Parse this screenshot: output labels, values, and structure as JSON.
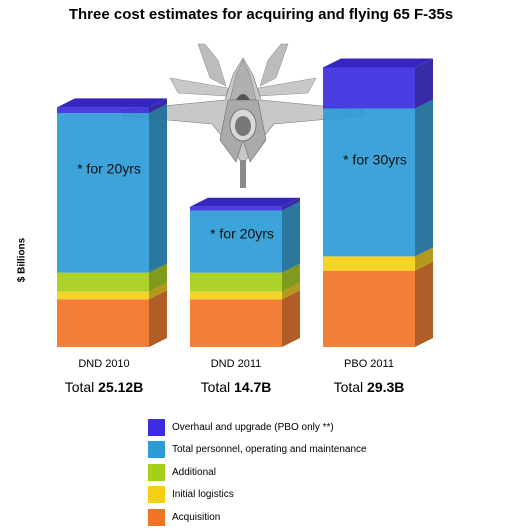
{
  "chart_data": {
    "type": "bar",
    "stacked": true,
    "title": "Three cost estimates for acquiring and flying 65 F-35s",
    "ylabel": "$ Billions",
    "categories": [
      "DND 2010",
      "DND 2011",
      "PBO 2011"
    ],
    "series": [
      {
        "name": "Acquisition",
        "color": "#f07426",
        "values": [
          5.0,
          5.0,
          8.0
        ]
      },
      {
        "name": "Initial logistics",
        "color": "#f5cf16",
        "values": [
          0.8,
          0.8,
          1.5
        ]
      },
      {
        "name": "Additional",
        "color": "#a6cf18",
        "values": [
          2.0,
          2.0,
          0
        ]
      },
      {
        "name": "Total personnel, operating and maintenance",
        "color": "#2e9bd6",
        "values": [
          16.72,
          6.5,
          15.5
        ]
      },
      {
        "name": "Overhaul and upgrade (PBO only **)",
        "color": "#3d2de0",
        "values": [
          0.6,
          0.4,
          4.3
        ]
      }
    ],
    "annotations": [
      "* for 20yrs",
      "* for 20yrs",
      "* for 30yrs"
    ],
    "totals": [
      {
        "label": "Total",
        "value": "25.12B"
      },
      {
        "label": "Total",
        "value": "14.7B"
      },
      {
        "label": "Total",
        "value": "29.3B"
      }
    ],
    "legend_order": [
      4,
      3,
      2,
      1,
      0
    ],
    "legend_position": "bottom",
    "ylim": [
      0,
      30.5
    ],
    "grid": false
  },
  "legend_labels": {
    "overhaul": "Overhaul and upgrade (PBO only **)",
    "personnel": "Total personnel, operating and maintenance",
    "additional": "Additional",
    "logistics": "Initial logistics",
    "acquisition": "Acquisition"
  },
  "colors": {
    "overhaul": "#3d2de0",
    "personnel": "#2e9bd6",
    "additional": "#a6cf18",
    "logistics": "#f5cf16",
    "acquisition": "#f07426"
  },
  "decoration": {
    "image": "f-35-jet-icon"
  }
}
